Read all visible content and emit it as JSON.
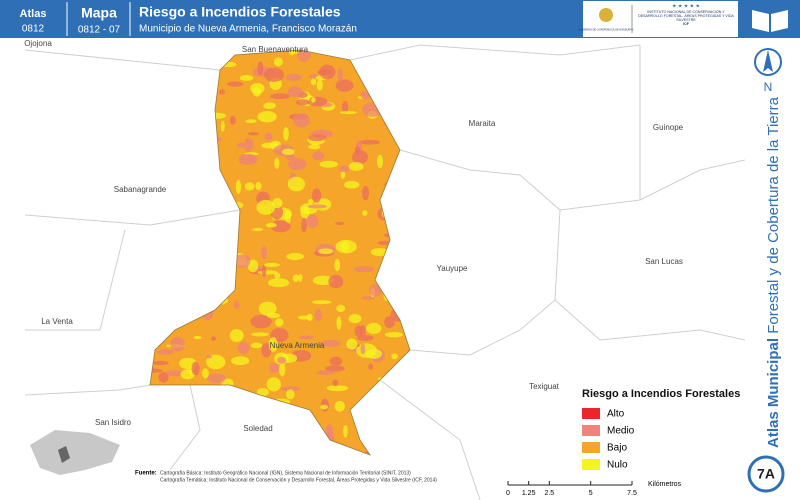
{
  "header": {
    "atlas_label": "Atlas",
    "atlas_code": "0812",
    "map_label": "Mapa",
    "map_code": "0812 - 07",
    "title": "Riesgo a Incendios Forestales",
    "subtitle": "Municipio de Nueva Armenia, Francisco Morazán",
    "logo_left": "GOBIERNO DE LA REPÚBLICA DE HONDURAS",
    "logo_right": "INSTITUTO NACIONAL DE CONSERVACIÓN Y DESARROLLO FORESTAL, ÁREAS PROTEGIDAS Y VIDA SILVESTRE",
    "logo_right_short": "ICF"
  },
  "places": [
    "Ojojona",
    "San Buenaventura",
    "Maraita",
    "Guinope",
    "Sabanagrande",
    "Yauyupe",
    "San Lucas",
    "La Venta",
    "Nueva Armenia",
    "Texiguat",
    "San Isidro",
    "Soledad"
  ],
  "legend": {
    "title": "Riesgo a Incendios Forestales",
    "items": [
      {
        "label": "Alto",
        "color": "#e8262b"
      },
      {
        "label": "Medio",
        "color": "#f0837a"
      },
      {
        "label": "Bajo",
        "color": "#f4a52a"
      },
      {
        "label": "Nulo",
        "color": "#f5f51e"
      }
    ]
  },
  "source": {
    "label": "Fuente:",
    "line1": "Cartografía Básica: Instituto Geográfico Nacional (IGN), Sistema Nacional de Información Territorial (SINIT, 2013)",
    "line2": "Cartografía Temática: Instituto Nacional de Conservación y Desarrollo Forestal, Áreas Protegidas y Vida Silvestre (ICF, 2014)"
  },
  "scale": {
    "ticks": [
      0,
      1.25,
      2.5,
      5,
      7.5
    ],
    "unit": "Kilómetros"
  },
  "north": "N",
  "sidebar": {
    "bold": "Atlas Municipal",
    "rest": "Forestal y de Cobertura de la Tierra"
  },
  "badge": "7A"
}
